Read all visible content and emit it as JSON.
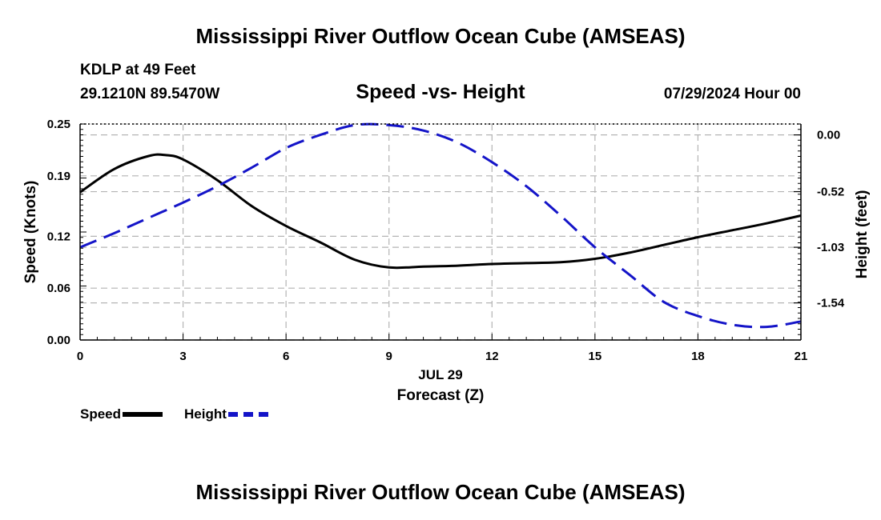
{
  "header": {
    "title": "Mississippi River Outflow Ocean Cube (AMSEAS)",
    "station": "KDLP at 49 Feet",
    "coords": "29.1210N  89.5470W",
    "subtitle": "Speed -vs- Height",
    "datetime": "07/29/2024 Hour 00"
  },
  "footer": {
    "title": "Mississippi River Outflow Ocean Cube (AMSEAS)"
  },
  "legend": {
    "speed_label": "Speed",
    "height_label": "Height"
  },
  "colors": {
    "speed": "#000000",
    "height": "#1414c8",
    "grid": "#b4b4b4"
  },
  "chart_data": {
    "type": "line",
    "xlabel": "Forecast (Z)",
    "xlabel_date": "JUL 29",
    "y_left_label": "Speed (Knots)",
    "y_right_label": "Height (feet)",
    "xlim": [
      0,
      21
    ],
    "ylim_left": [
      0,
      0.25
    ],
    "ylim_right": [
      -1.88,
      0.1
    ],
    "x_ticks": [
      "0",
      "3",
      "6",
      "9",
      "12",
      "15",
      "18",
      "21"
    ],
    "y_left_ticks": [
      "0.00",
      "0.06",
      "0.12",
      "0.19",
      "0.25"
    ],
    "y_right_ticks": [
      {
        "label": "0.00",
        "value": 0.0
      },
      {
        "label": "-0.52",
        "value": -0.52
      },
      {
        "label": "-1.03",
        "value": -1.03
      },
      {
        "label": "-1.54",
        "value": -1.54
      }
    ],
    "grid": true,
    "series": [
      {
        "name": "Speed",
        "axis": "left",
        "style": "solid",
        "x": [
          0,
          1,
          2,
          2.5,
          3,
          4,
          5,
          6,
          7,
          8,
          9,
          10,
          11,
          12,
          13,
          14,
          15,
          16,
          17,
          18,
          19,
          20,
          21
        ],
        "values": [
          0.171,
          0.198,
          0.213,
          0.214,
          0.209,
          0.185,
          0.155,
          0.132,
          0.113,
          0.093,
          0.084,
          0.085,
          0.086,
          0.088,
          0.089,
          0.09,
          0.094,
          0.101,
          0.11,
          0.119,
          0.127,
          0.135,
          0.144
        ]
      },
      {
        "name": "Height",
        "axis": "right",
        "style": "dashed",
        "x": [
          0,
          1,
          2,
          3,
          4,
          5,
          6,
          7,
          8,
          9,
          10,
          11,
          12,
          13,
          14,
          15,
          16,
          17,
          18,
          19,
          20,
          21
        ],
        "values": [
          -1.03,
          -0.9,
          -0.76,
          -0.62,
          -0.47,
          -0.3,
          -0.12,
          0.0,
          0.09,
          0.09,
          0.04,
          -0.07,
          -0.25,
          -0.47,
          -0.74,
          -1.03,
          -1.28,
          -1.53,
          -1.66,
          -1.74,
          -1.76,
          -1.71
        ]
      }
    ]
  }
}
